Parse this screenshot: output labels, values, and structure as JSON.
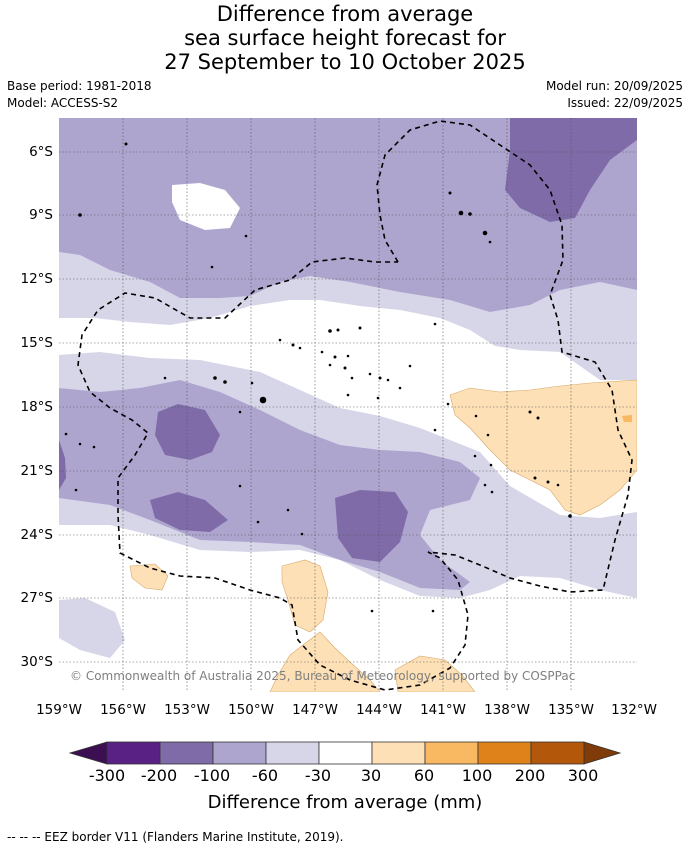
{
  "title": {
    "line1": "Difference from average",
    "line2": "sea surface height forecast for",
    "line3": "27 September to 10 October 2025"
  },
  "meta": {
    "base_period": "Base period: 1981-2018",
    "model": "Model: ACCESS-S2",
    "model_run": "Model run: 20/09/2025",
    "issued": "Issued: 22/09/2025"
  },
  "map": {
    "lat_labels": [
      "6°S",
      "9°S",
      "12°S",
      "15°S",
      "18°S",
      "21°S",
      "24°S",
      "27°S",
      "30°S"
    ],
    "lon_labels": [
      "159°W",
      "156°W",
      "153°W",
      "150°W",
      "147°W",
      "144°W",
      "141°W",
      "138°W",
      "135°W",
      "132°W"
    ],
    "copyright": "© Commonwealth of Australia 2025, Bureau of Meteorology, supported by COSPPac"
  },
  "colorbar": {
    "ticks": [
      "-300",
      "-200",
      "-100",
      "-60",
      "-30",
      "30",
      "60",
      "100",
      "200",
      "300"
    ],
    "colors": [
      "#3b0f52",
      "#5a2185",
      "#7e6ba8",
      "#aea5cf",
      "#d7d6e8",
      "#ffffff",
      "#fde0b6",
      "#f9b862",
      "#e0821a",
      "#b3580a",
      "#7f3b08"
    ],
    "title": "Difference from average (mm)"
  },
  "footer": "-- -- -- EEZ border V11 (Flanders Marine Institute, 2019)."
}
